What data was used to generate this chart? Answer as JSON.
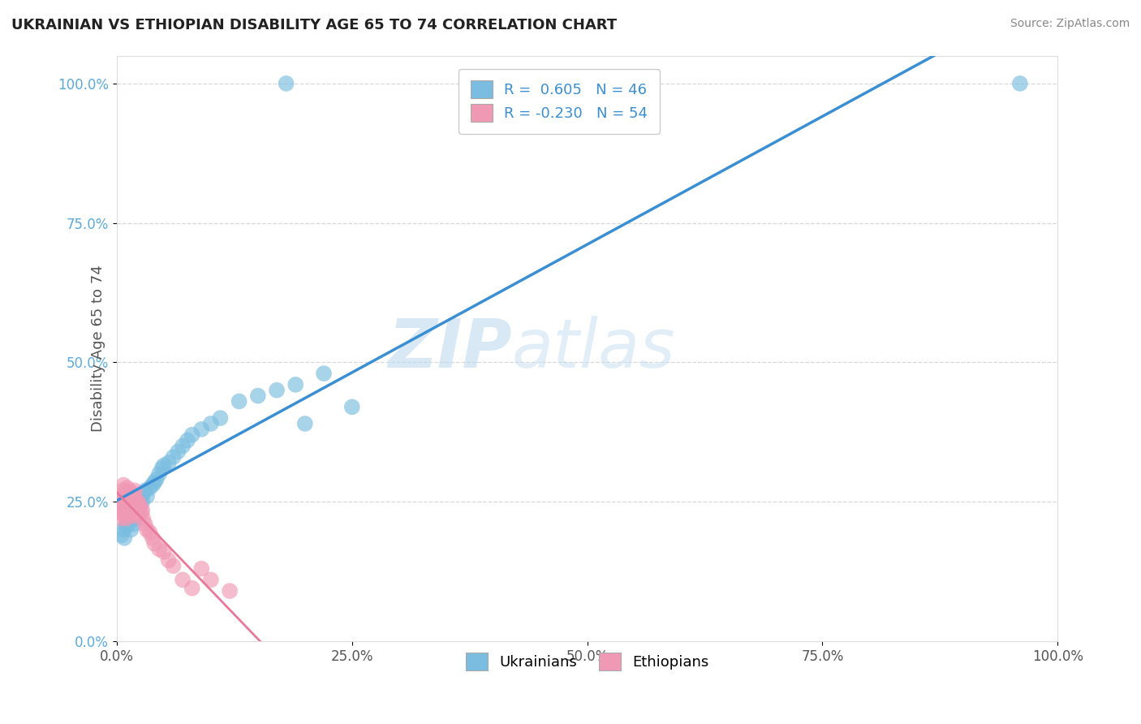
{
  "title": "UKRAINIAN VS ETHIOPIAN DISABILITY AGE 65 TO 74 CORRELATION CHART",
  "source": "Source: ZipAtlas.com",
  "ylabel": "Disability Age 65 to 74",
  "xlabel": "",
  "legend_labels": [
    "Ukrainians",
    "Ethiopians"
  ],
  "ukrainian_R": 0.605,
  "ukrainian_N": 46,
  "ethiopian_R": -0.23,
  "ethiopian_N": 54,
  "ukrainian_color": "#7abde0",
  "ethiopian_color": "#f099b5",
  "ukrainian_line_color": "#3a8fd4",
  "ethiopian_line_color": "#e8799a",
  "watermark_zip": "ZIP",
  "watermark_atlas": "atlas",
  "xlim": [
    0.0,
    1.0
  ],
  "ylim": [
    0.0,
    1.05
  ],
  "grid_ticks": [
    0.0,
    0.25,
    0.5,
    0.75,
    1.0
  ],
  "ukrainian_x": [
    0.005,
    0.007,
    0.008,
    0.01,
    0.01,
    0.012,
    0.013,
    0.015,
    0.015,
    0.018,
    0.018,
    0.02,
    0.02,
    0.022,
    0.022,
    0.025,
    0.025,
    0.027,
    0.028,
    0.03,
    0.032,
    0.035,
    0.038,
    0.04,
    0.042,
    0.045,
    0.048,
    0.05,
    0.055,
    0.06,
    0.065,
    0.07,
    0.075,
    0.08,
    0.09,
    0.1,
    0.11,
    0.13,
    0.15,
    0.17,
    0.19,
    0.22,
    0.25,
    0.96,
    0.18,
    0.2
  ],
  "ukrainian_y": [
    0.19,
    0.2,
    0.185,
    0.205,
    0.21,
    0.215,
    0.22,
    0.2,
    0.225,
    0.21,
    0.23,
    0.22,
    0.24,
    0.225,
    0.235,
    0.245,
    0.255,
    0.25,
    0.265,
    0.27,
    0.26,
    0.275,
    0.28,
    0.285,
    0.29,
    0.3,
    0.31,
    0.315,
    0.32,
    0.33,
    0.34,
    0.35,
    0.36,
    0.37,
    0.38,
    0.39,
    0.4,
    0.43,
    0.44,
    0.45,
    0.46,
    0.48,
    0.42,
    1.0,
    1.0,
    0.39
  ],
  "ethiopian_x": [
    0.003,
    0.004,
    0.005,
    0.005,
    0.006,
    0.006,
    0.007,
    0.007,
    0.008,
    0.008,
    0.009,
    0.009,
    0.01,
    0.01,
    0.011,
    0.011,
    0.012,
    0.012,
    0.013,
    0.013,
    0.014,
    0.014,
    0.015,
    0.015,
    0.016,
    0.017,
    0.018,
    0.018,
    0.019,
    0.019,
    0.02,
    0.02,
    0.021,
    0.022,
    0.023,
    0.024,
    0.025,
    0.026,
    0.027,
    0.028,
    0.03,
    0.032,
    0.035,
    0.038,
    0.04,
    0.045,
    0.05,
    0.055,
    0.06,
    0.07,
    0.08,
    0.09,
    0.1,
    0.12
  ],
  "ethiopian_y": [
    0.24,
    0.25,
    0.22,
    0.26,
    0.23,
    0.27,
    0.24,
    0.28,
    0.225,
    0.26,
    0.235,
    0.265,
    0.22,
    0.255,
    0.24,
    0.275,
    0.23,
    0.26,
    0.245,
    0.27,
    0.235,
    0.265,
    0.225,
    0.255,
    0.245,
    0.25,
    0.23,
    0.265,
    0.24,
    0.27,
    0.225,
    0.255,
    0.24,
    0.25,
    0.23,
    0.245,
    0.24,
    0.23,
    0.235,
    0.22,
    0.21,
    0.2,
    0.195,
    0.185,
    0.175,
    0.165,
    0.16,
    0.145,
    0.135,
    0.11,
    0.095,
    0.13,
    0.11,
    0.09
  ]
}
